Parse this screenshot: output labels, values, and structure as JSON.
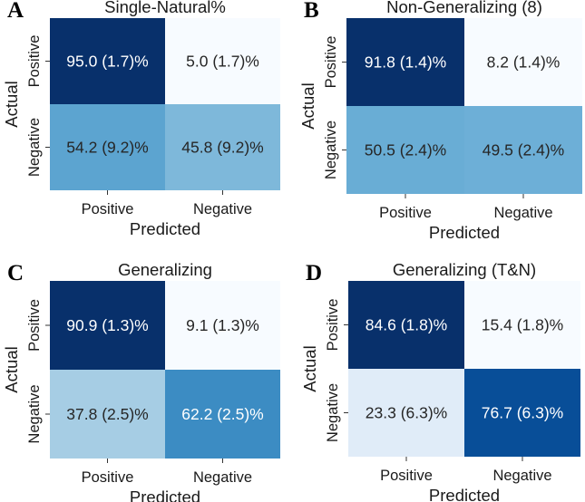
{
  "chart_data": [
    {
      "type": "heatmap",
      "panel": "A",
      "title": "Single-Natural%",
      "xlabel": "Predicted",
      "ylabel": "Actual",
      "x_categories": [
        "Positive",
        "Negative"
      ],
      "y_categories": [
        "Positive",
        "Negative"
      ],
      "values": [
        [
          95.0,
          5.0
        ],
        [
          54.2,
          45.8
        ]
      ],
      "labels": [
        [
          "95.0 (1.7)%",
          "5.0 (1.7)%"
        ],
        [
          "54.2 (9.2)%",
          "45.8 (9.2)%"
        ]
      ],
      "colormap": "Blues"
    },
    {
      "type": "heatmap",
      "panel": "B",
      "title": "Non-Generalizing (8)",
      "xlabel": "Predicted",
      "ylabel": "Actual",
      "x_categories": [
        "Positive",
        "Negative"
      ],
      "y_categories": [
        "Positive",
        "Negative"
      ],
      "values": [
        [
          91.8,
          8.2
        ],
        [
          50.5,
          49.5
        ]
      ],
      "labels": [
        [
          "91.8 (1.4)%",
          "8.2 (1.4)%"
        ],
        [
          "50.5 (2.4)%",
          "49.5 (2.4)%"
        ]
      ],
      "colormap": "Blues"
    },
    {
      "type": "heatmap",
      "panel": "C",
      "title": "Generalizing",
      "xlabel": "Predicted",
      "ylabel": "Actual",
      "x_categories": [
        "Positive",
        "Negative"
      ],
      "y_categories": [
        "Positive",
        "Negative"
      ],
      "values": [
        [
          90.9,
          9.1
        ],
        [
          37.8,
          62.2
        ]
      ],
      "labels": [
        [
          "90.9 (1.3)%",
          "9.1 (1.3)%"
        ],
        [
          "37.8 (2.5)%",
          "62.2 (2.5)%"
        ]
      ],
      "colormap": "Blues"
    },
    {
      "type": "heatmap",
      "panel": "D",
      "title": "Generalizing (T&N)",
      "xlabel": "Predicted",
      "ylabel": "Actual",
      "x_categories": [
        "Positive",
        "Negative"
      ],
      "y_categories": [
        "Positive",
        "Negative"
      ],
      "values": [
        [
          84.6,
          15.4
        ],
        [
          23.3,
          76.7
        ]
      ],
      "labels": [
        [
          "84.6 (1.8)%",
          "15.4 (1.8)%"
        ],
        [
          "23.3 (6.3)%",
          "76.7 (6.3)%"
        ]
      ],
      "colormap": "Blues"
    }
  ]
}
